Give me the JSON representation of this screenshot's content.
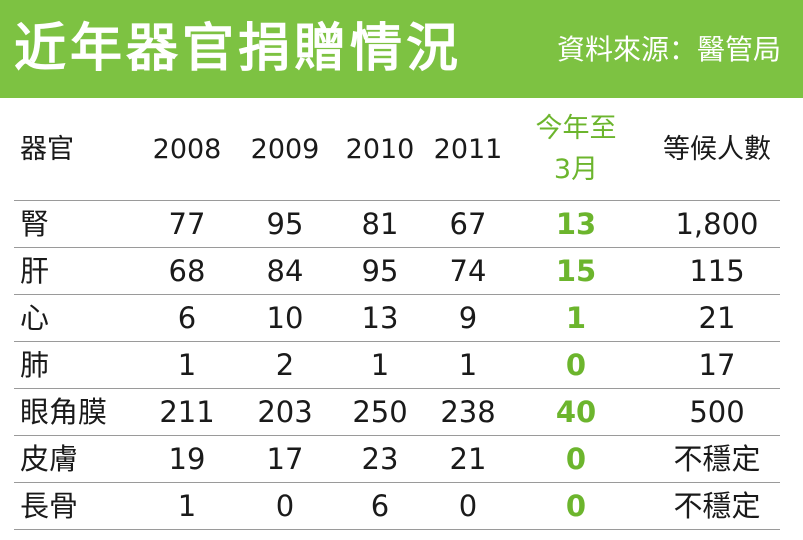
{
  "banner": {
    "title": "近年器官捐贈情況",
    "source": "資料來源：醫管局"
  },
  "colors": {
    "banner_bg": "#7dc242",
    "highlight": "#6cb52d",
    "rule": "#9a9a9a"
  },
  "chart_data": {
    "type": "table",
    "title": "近年器官捐贈情況",
    "source": "資料來源：醫管局",
    "columns": [
      "器官",
      "2008",
      "2009",
      "2010",
      "2011",
      "今年至3月",
      "等候人數"
    ],
    "header": {
      "organ": "器官",
      "y2008": "2008",
      "y2009": "2009",
      "y2010": "2010",
      "y2011": "2011",
      "ytd_line1": "今年至",
      "ytd_line2": "3月",
      "waiting": "等候人數"
    },
    "rows": [
      [
        "腎",
        "77",
        "95",
        "81",
        "67",
        "13",
        "1,800"
      ],
      [
        "肝",
        "68",
        "84",
        "95",
        "74",
        "15",
        "115"
      ],
      [
        "心",
        "6",
        "10",
        "13",
        "9",
        "1",
        "21"
      ],
      [
        "肺",
        "1",
        "2",
        "1",
        "1",
        "0",
        "17"
      ],
      [
        "眼角膜",
        "211",
        "203",
        "250",
        "238",
        "40",
        "500"
      ],
      [
        "皮膚",
        "19",
        "17",
        "23",
        "21",
        "0",
        "不穩定"
      ],
      [
        "長骨",
        "1",
        "0",
        "6",
        "0",
        "0",
        "不穩定"
      ]
    ]
  }
}
